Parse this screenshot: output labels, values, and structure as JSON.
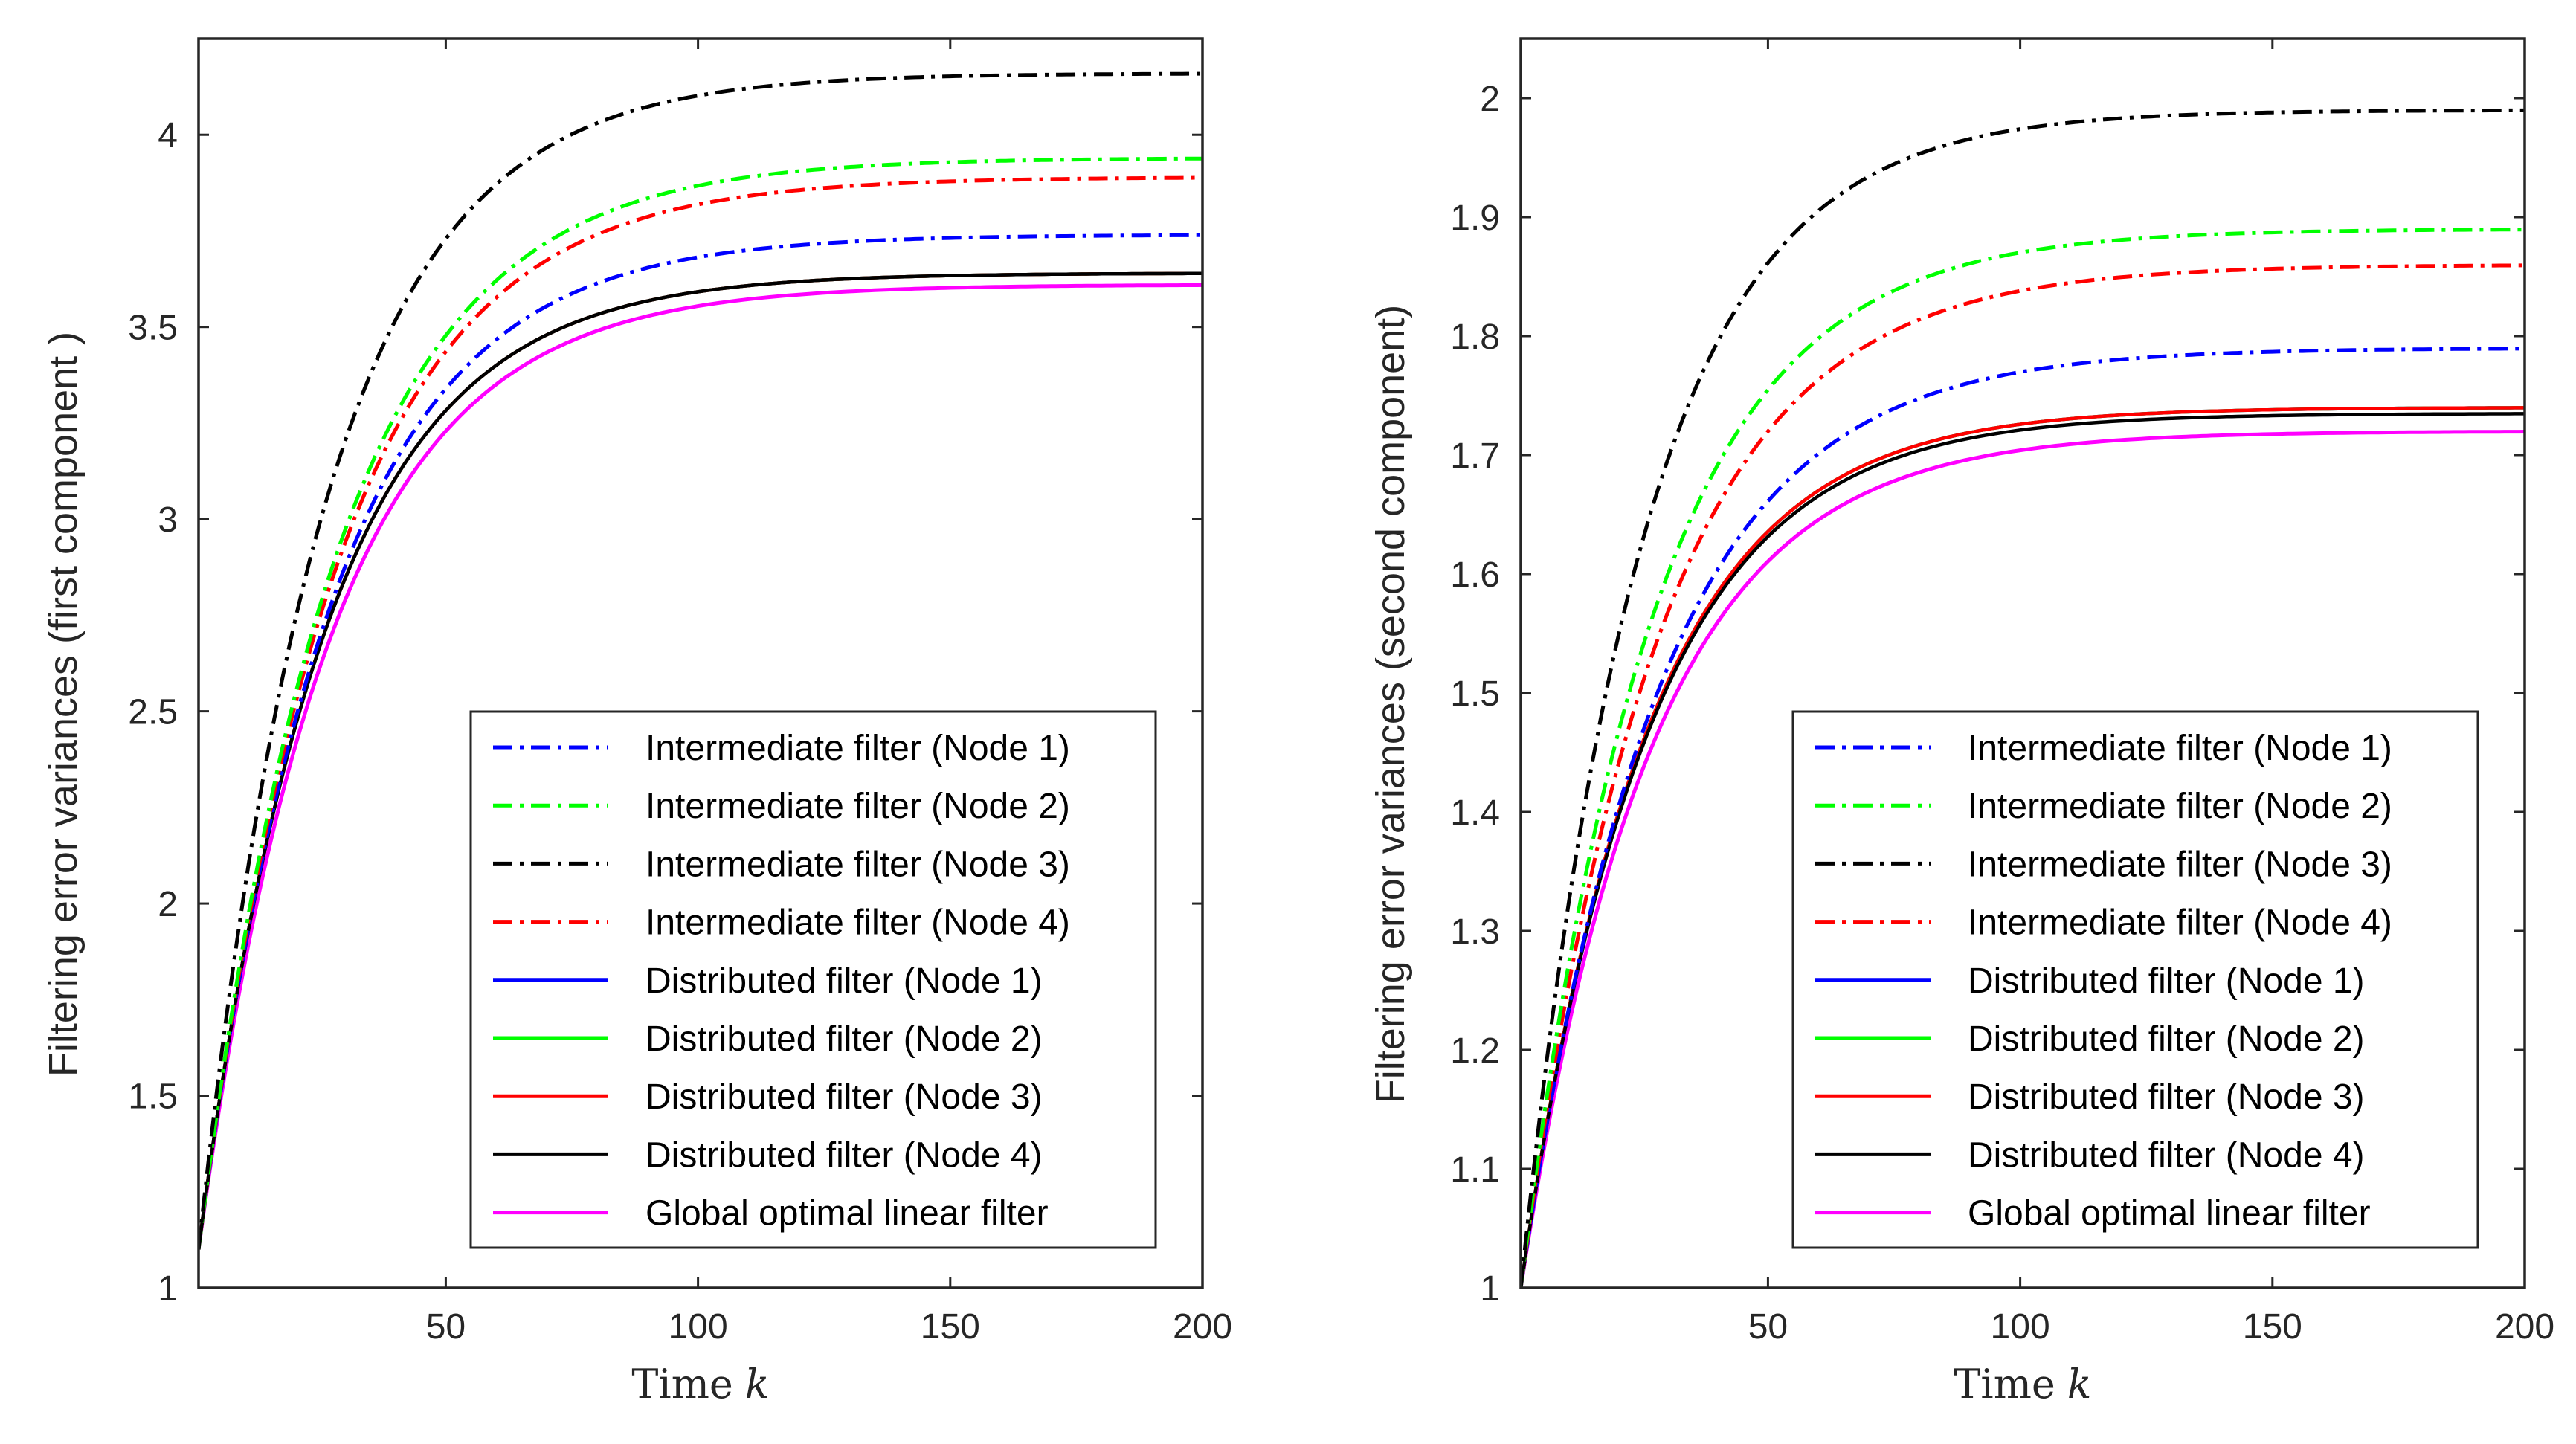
{
  "chart_data": [
    {
      "type": "line",
      "title": "",
      "xlabel": "Time",
      "xlabel_var": "k",
      "ylabel": "Filtering error variances (first component )",
      "xlim": [
        1,
        200
      ],
      "ylim": [
        1,
        4.25
      ],
      "xticks": [
        50,
        100,
        150,
        200
      ],
      "xtick_labels": [
        "50",
        "100",
        "150",
        "200"
      ],
      "yticks": [
        1,
        1.5,
        2,
        2.5,
        3,
        3.5,
        4
      ],
      "ytick_labels": [
        "1",
        "1.5",
        "2",
        "2.5",
        "3",
        "3.5",
        "4"
      ],
      "legend_position": "bottom-right",
      "series": [
        {
          "name": "Intermediate filter (Node 1)",
          "color": "#0000ff",
          "style": "dashdot",
          "start": 1.1,
          "end": 3.74,
          "tau": 26
        },
        {
          "name": "Intermediate filter (Node 2)",
          "color": "#00ff00",
          "style": "dashdot",
          "start": 1.1,
          "end": 3.94,
          "tau": 27
        },
        {
          "name": "Intermediate filter (Node 3)",
          "color": "#000000",
          "style": "dashdot",
          "start": 1.1,
          "end": 4.16,
          "tau": 25
        },
        {
          "name": "Intermediate filter (Node 4)",
          "color": "#ff0000",
          "style": "dashdot",
          "start": 1.1,
          "end": 3.89,
          "tau": 27
        },
        {
          "name": "Distributed filter (Node 1)",
          "color": "#0000ff",
          "style": "solid",
          "start": 1.1,
          "end": 3.64,
          "tau": 25
        },
        {
          "name": "Distributed filter (Node 2)",
          "color": "#00ff00",
          "style": "solid",
          "start": 1.1,
          "end": 3.64,
          "tau": 25
        },
        {
          "name": "Distributed filter (Node 3)",
          "color": "#ff0000",
          "style": "solid",
          "start": 1.1,
          "end": 3.64,
          "tau": 25
        },
        {
          "name": "Distributed filter (Node 4)",
          "color": "#000000",
          "style": "solid",
          "start": 1.1,
          "end": 3.64,
          "tau": 25
        },
        {
          "name": "Global optimal linear filter",
          "color": "#ff00ff",
          "style": "solid",
          "start": 1.1,
          "end": 3.61,
          "tau": 26
        }
      ]
    },
    {
      "type": "line",
      "title": "",
      "xlabel": "Time",
      "xlabel_var": "k",
      "ylabel": "Filtering error variances (second component)",
      "xlim": [
        1,
        200
      ],
      "ylim": [
        1,
        2.05
      ],
      "xticks": [
        50,
        100,
        150,
        200
      ],
      "xtick_labels": [
        "50",
        "100",
        "150",
        "200"
      ],
      "yticks": [
        1,
        1.1,
        1.2,
        1.3,
        1.4,
        1.5,
        1.6,
        1.7,
        1.8,
        1.9,
        2
      ],
      "ytick_labels": [
        "1",
        "1.1",
        "1.2",
        "1.3",
        "1.4",
        "1.5",
        "1.6",
        "1.7",
        "1.8",
        "1.9",
        "2"
      ],
      "legend_position": "bottom-right",
      "series": [
        {
          "name": "Intermediate filter (Node 1)",
          "color": "#0000ff",
          "style": "dashdot",
          "start": 1.0,
          "end": 1.79,
          "tau": 27
        },
        {
          "name": "Intermediate filter (Node 2)",
          "color": "#00ff00",
          "style": "dashdot",
          "start": 1.0,
          "end": 1.89,
          "tau": 26
        },
        {
          "name": "Intermediate filter (Node 3)",
          "color": "#000000",
          "style": "dashdot",
          "start": 1.0,
          "end": 1.99,
          "tau": 24
        },
        {
          "name": "Intermediate filter (Node 4)",
          "color": "#ff0000",
          "style": "dashdot",
          "start": 1.0,
          "end": 1.86,
          "tau": 27
        },
        {
          "name": "Distributed filter (Node 1)",
          "color": "#0000ff",
          "style": "solid",
          "start": 1.0,
          "end": 1.74,
          "tau": 25
        },
        {
          "name": "Distributed filter (Node 2)",
          "color": "#00ff00",
          "style": "solid",
          "start": 1.0,
          "end": 1.74,
          "tau": 25
        },
        {
          "name": "Distributed filter (Node 3)",
          "color": "#ff0000",
          "style": "solid",
          "start": 1.0,
          "end": 1.74,
          "tau": 25
        },
        {
          "name": "Distributed filter (Node 4)",
          "color": "#000000",
          "style": "solid",
          "start": 1.0,
          "end": 1.735,
          "tau": 25
        },
        {
          "name": "Global optimal linear filter",
          "color": "#ff00ff",
          "style": "solid",
          "start": 1.0,
          "end": 1.72,
          "tau": 26
        }
      ]
    }
  ]
}
